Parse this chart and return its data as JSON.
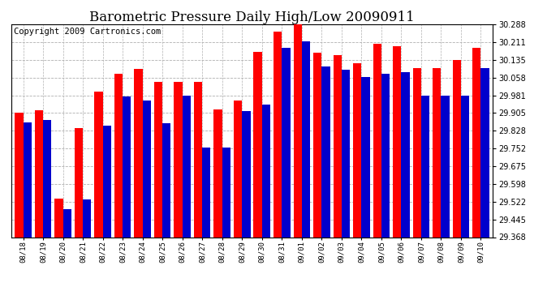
{
  "title": "Barometric Pressure Daily High/Low 20090911",
  "copyright": "Copyright 2009 Cartronics.com",
  "dates": [
    "08/18",
    "08/19",
    "08/20",
    "08/21",
    "08/22",
    "08/23",
    "08/24",
    "08/25",
    "08/26",
    "08/27",
    "08/28",
    "08/29",
    "08/30",
    "08/31",
    "09/01",
    "09/02",
    "09/03",
    "09/04",
    "09/05",
    "09/06",
    "09/07",
    "09/08",
    "09/09",
    "09/10"
  ],
  "highs": [
    29.905,
    29.915,
    29.535,
    29.84,
    29.998,
    30.075,
    30.095,
    30.04,
    30.04,
    30.04,
    29.92,
    29.96,
    30.17,
    30.255,
    30.295,
    30.165,
    30.155,
    30.12,
    30.205,
    30.195,
    30.1,
    30.1,
    30.135,
    30.185
  ],
  "lows": [
    29.865,
    29.875,
    29.49,
    29.53,
    29.85,
    29.975,
    29.96,
    29.86,
    29.978,
    29.755,
    29.755,
    29.912,
    29.942,
    30.185,
    30.215,
    30.105,
    30.09,
    30.06,
    30.075,
    30.082,
    29.981,
    29.981,
    29.981,
    30.1
  ],
  "ymin": 29.368,
  "ymax": 30.288,
  "yticks": [
    29.368,
    29.445,
    29.522,
    29.598,
    29.675,
    29.752,
    29.828,
    29.905,
    29.981,
    30.058,
    30.135,
    30.211,
    30.288
  ],
  "high_color": "#ff0000",
  "low_color": "#0000cc",
  "bg_color": "#ffffff",
  "plot_bg_color": "#ffffff",
  "grid_color": "#b0b0b0",
  "title_fontsize": 12,
  "copyright_fontsize": 7.5
}
